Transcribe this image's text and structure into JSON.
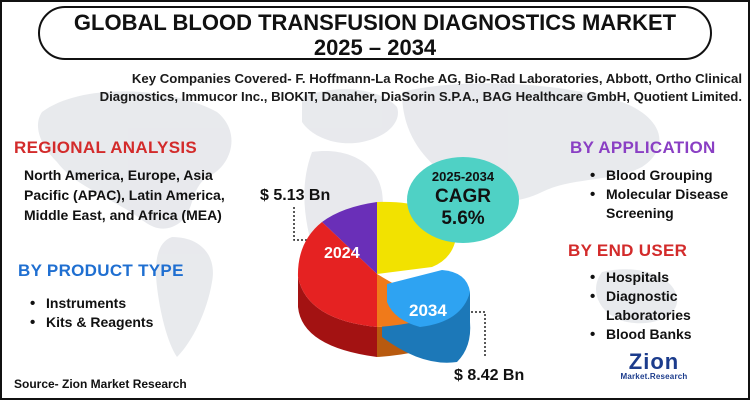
{
  "title": {
    "line1": "GLOBAL BLOOD TRANSFUSION DIAGNOSTICS MARKET",
    "line2": "2025 – 2034"
  },
  "companies_text": "Key Companies Covered- F. Hoffmann-La Roche AG, Bio-Rad Laboratories, Abbott, Ortho Clinical Diagnostics, Immucor Inc., BIOKIT, Danaher, DiaSorin S.P.A., BAG Healthcare GmbH, Quotient Limited.",
  "regional": {
    "heading": "REGIONAL ANALYSIS",
    "text": "North America, Europe, Asia Pacific (APAC), Latin America, Middle East, and Africa (MEA)"
  },
  "product_type": {
    "heading": "BY PRODUCT TYPE",
    "items": [
      "Instruments",
      "Kits & Reagents"
    ]
  },
  "application": {
    "heading": "BY APPLICATION",
    "items": [
      "Blood Grouping",
      "Molecular Disease Screening"
    ]
  },
  "end_user": {
    "heading": "BY  END USER",
    "items": [
      "Hospitals",
      "Diagnostic Laboratories",
      "Blood Banks"
    ]
  },
  "market_values": {
    "start_label": "2024",
    "start_value": "$  5.13 Bn",
    "end_label": "2034",
    "end_value": "$ 8.42 Bn"
  },
  "cagr": {
    "years": "2025-2034",
    "label": "CAGR",
    "value": "5.6%"
  },
  "source": "Source- Zion Market Research",
  "logo": {
    "name": "Zion",
    "tagline": "Market.Research"
  },
  "colors": {
    "red_heading": "#d32b2b",
    "blue_heading": "#1f6fd1",
    "purple_heading": "#8a3fc4",
    "cagr_bubble": "#4fd1c5",
    "slice_blue": "#2ea3f2",
    "slice_yellow": "#f2e200",
    "slice_purple": "#6a2fb8",
    "slice_red": "#e52222",
    "slice_orange": "#f07a1a"
  }
}
